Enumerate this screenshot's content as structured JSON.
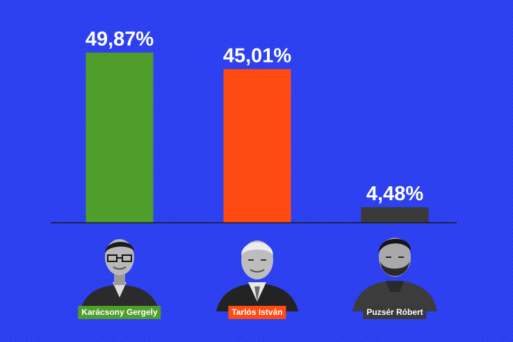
{
  "chart_data": {
    "type": "bar",
    "categories": [
      "Karácsony Gergely",
      "Tarlós István",
      "Puzsér Róbert"
    ],
    "values": [
      49.87,
      45.01,
      4.48
    ],
    "value_labels": [
      "49,87%",
      "45,01%",
      "4,48%"
    ],
    "ylim": [
      0,
      50
    ],
    "grid": false,
    "legend": "none",
    "colors": [
      "#4f9d2b",
      "#ff4b12",
      "#3a3a3a"
    ]
  },
  "colors": {
    "background": "#2a3ef0",
    "baseline": "#1a1a1a"
  },
  "icons": [
    "portrait-karacsony-icon",
    "portrait-tarlos-icon",
    "portrait-puzser-icon"
  ]
}
